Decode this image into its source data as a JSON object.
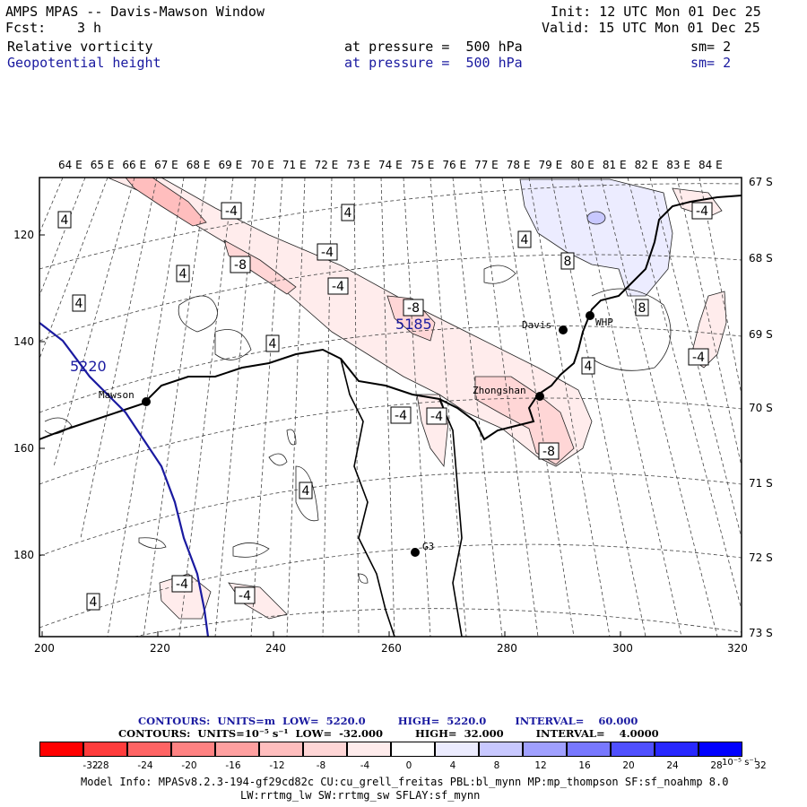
{
  "header": {
    "title": "AMPS MPAS -- Davis-Mawson Window",
    "fcst_label": "Fcst:",
    "fcst_value": "3 h",
    "init": "Init: 12 UTC Mon 01 Dec 25",
    "valid": "Valid: 15 UTC Mon 01 Dec 25",
    "fields": [
      {
        "name": "Relative vorticity",
        "level": "at pressure =  500 hPa",
        "sm": "sm= 2",
        "color": "#000000"
      },
      {
        "name": "Geopotential height",
        "level": "at pressure =  500 hPa",
        "sm": "sm= 2",
        "color": "#1a1aa0"
      }
    ]
  },
  "map": {
    "frame_color": "#000000",
    "lon_labels": [
      "64 E",
      "65 E",
      "66 E",
      "67 E",
      "68 E",
      "69 E",
      "70 E",
      "71 E",
      "72 E",
      "73 E",
      "74 E",
      "75 E",
      "76 E",
      "77 E",
      "78 E",
      "79 E",
      "80 E",
      "81 E",
      "82 E",
      "83 E",
      "84 E"
    ],
    "lat_labels": [
      "67 S",
      "68 S",
      "69 S",
      "70 S",
      "71 S",
      "72 S",
      "73 S"
    ],
    "x_ticks": [
      "200",
      "220",
      "240",
      "260",
      "280",
      "300",
      "320"
    ],
    "y_ticks": [
      "120",
      "140",
      "160",
      "180"
    ],
    "stations": [
      {
        "name": "Mawson"
      },
      {
        "name": "Davis"
      },
      {
        "name": "WHP"
      },
      {
        "name": "Zhongshan"
      },
      {
        "name": "G3"
      }
    ],
    "height_labels": [
      "5220",
      "5185"
    ],
    "vort_labels": [
      "4",
      "-4",
      "-8",
      "8"
    ]
  },
  "contour_info": {
    "line1": "CONTOURS:  UNITS=m  LOW=  5220.0         HIGH=  5220.0        INTERVAL=    60.000",
    "line2": "CONTOURS:  UNITS=10⁻⁵ s⁻¹  LOW=  -32.000         HIGH=  32.000         INTERVAL=    4.0000"
  },
  "colorbar": {
    "labels": [
      "-32",
      "-28",
      "-24",
      "-20",
      "-16",
      "-12",
      "-8",
      "-4",
      "0",
      "4",
      "8",
      "12",
      "16",
      "20",
      "24",
      "28",
      "32"
    ],
    "units": "10⁻⁵ s⁻¹",
    "colors": [
      "#ff0000",
      "#ff3c3c",
      "#ff6464",
      "#ff8282",
      "#ffa0a0",
      "#ffbebe",
      "#ffd6d6",
      "#ffecec",
      "#ffffff",
      "#ffffff",
      "#ececff",
      "#c8c8ff",
      "#a0a0ff",
      "#7878ff",
      "#5050ff",
      "#2828ff",
      "#0000ff"
    ]
  },
  "model_info": {
    "line1": "Model Info: MPASv8.2.3-194-gf29cd82c CU:cu_grell_freitas PBL:bl_mynn MP:mp_thompson SF:sf_noahmp 8.0",
    "line2": "LW:rrtmg_lw SW:rrtmg_sw SFLAY:sf_mynn"
  }
}
